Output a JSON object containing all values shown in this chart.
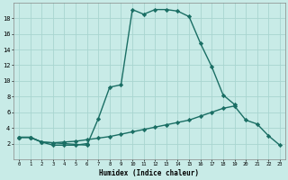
{
  "xlabel": "Humidex (Indice chaleur)",
  "background_color": "#c8ebe7",
  "grid_color": "#a8d5d0",
  "line_color": "#1a6e64",
  "curve1_x": [
    0,
    1,
    2,
    6,
    7,
    8,
    9,
    10,
    11,
    12,
    13,
    14,
    15,
    16,
    17,
    18,
    19
  ],
  "curve1_y": [
    2.8,
    2.8,
    2.2,
    1.8,
    5.2,
    9.2,
    9.5,
    19.1,
    18.5,
    19.1,
    19.1,
    18.9,
    18.2,
    14.8,
    11.8,
    8.2,
    7.0
  ],
  "curve2_x": [
    0,
    1,
    2,
    3,
    4,
    5,
    6,
    7,
    8,
    9,
    10,
    11,
    12,
    13,
    14,
    15,
    16,
    17,
    18,
    19,
    20,
    21,
    22,
    23
  ],
  "curve2_y": [
    2.8,
    2.8,
    2.2,
    2.1,
    2.2,
    2.3,
    2.5,
    2.7,
    2.9,
    3.2,
    3.5,
    3.8,
    4.1,
    4.4,
    4.7,
    5.0,
    5.5,
    6.0,
    6.5,
    6.8,
    5.0,
    4.5,
    3.0,
    1.8
  ],
  "curve3_x": [
    0,
    1,
    2,
    3,
    4,
    5,
    6
  ],
  "curve3_y": [
    2.8,
    2.8,
    2.2,
    1.8,
    1.8,
    1.8,
    2.0
  ],
  "ylim": [
    0,
    20
  ],
  "xlim": [
    -0.5,
    23.5
  ],
  "yticks": [
    2,
    4,
    6,
    8,
    10,
    12,
    14,
    16,
    18
  ],
  "xticks": [
    0,
    1,
    2,
    3,
    4,
    5,
    6,
    7,
    8,
    9,
    10,
    11,
    12,
    13,
    14,
    15,
    16,
    17,
    18,
    19,
    20,
    21,
    22,
    23
  ]
}
